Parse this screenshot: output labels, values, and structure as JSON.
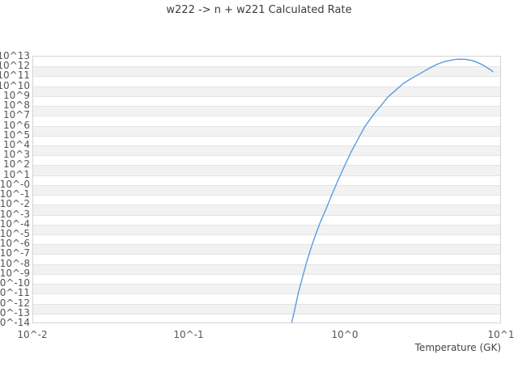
{
  "chart_data": {
    "type": "line",
    "title": "w222 -> n + w221 Calculated Rate",
    "xlabel": "Temperature (GK)",
    "ylabel": "",
    "x_scale": "log",
    "y_scale": "log",
    "xlim_log10": [
      -2,
      1
    ],
    "ylim_log10": [
      -14,
      13
    ],
    "x_ticks": [
      "10^-2",
      "10^-1",
      "10^0",
      "10^1"
    ],
    "y_ticks": [
      "10^13",
      "10^12",
      "10^11",
      "10^10",
      "10^9",
      "10^8",
      "10^7",
      "10^6",
      "10^5",
      "10^4",
      "10^3",
      "10^2",
      "10^1",
      "10^-0",
      "10^-1",
      "10^-2",
      "10^-3",
      "10^-4",
      "10^-5",
      "10^-6",
      "10^-7",
      "10^-8",
      "10^-9",
      "10^-10",
      "10^-11",
      "10^-12",
      "10^-13",
      "10^-14"
    ],
    "grid": "horizontal-stripes",
    "legend": "none",
    "line_color": "#5b9ce0",
    "band_color": "#f2f2f2",
    "grid_color": "#e4e4e4",
    "border_color": "#d4d4d4",
    "tick_text_color": "#555555",
    "title_color": "#3c3c3c",
    "series": [
      {
        "name": "calculated rate",
        "x_unit": "GK",
        "y_unit": "log10(rate)",
        "points": [
          [
            0.458,
            -14.0
          ],
          [
            0.48,
            -12.6
          ],
          [
            0.505,
            -11.0
          ],
          [
            0.535,
            -9.5
          ],
          [
            0.57,
            -7.9
          ],
          [
            0.61,
            -6.4
          ],
          [
            0.655,
            -5.0
          ],
          [
            0.7,
            -3.8
          ],
          [
            0.755,
            -2.6
          ],
          [
            0.82,
            -1.2
          ],
          [
            0.9,
            0.3
          ],
          [
            1.0,
            1.9
          ],
          [
            1.1,
            3.3
          ],
          [
            1.2,
            4.4
          ],
          [
            1.35,
            5.9
          ],
          [
            1.55,
            7.2
          ],
          [
            1.75,
            8.2
          ],
          [
            1.9,
            8.9
          ],
          [
            2.1,
            9.5
          ],
          [
            2.4,
            10.3
          ],
          [
            2.7,
            10.8
          ],
          [
            3.0,
            11.2
          ],
          [
            3.4,
            11.7
          ],
          [
            3.9,
            12.2
          ],
          [
            4.4,
            12.5
          ],
          [
            5.0,
            12.68
          ],
          [
            5.2,
            12.72
          ],
          [
            5.5,
            12.74
          ],
          [
            6.0,
            12.72
          ],
          [
            6.5,
            12.62
          ],
          [
            7.0,
            12.45
          ],
          [
            7.5,
            12.25
          ],
          [
            8.0,
            12.0
          ],
          [
            8.5,
            11.74
          ],
          [
            9.0,
            11.45
          ]
        ]
      }
    ]
  }
}
